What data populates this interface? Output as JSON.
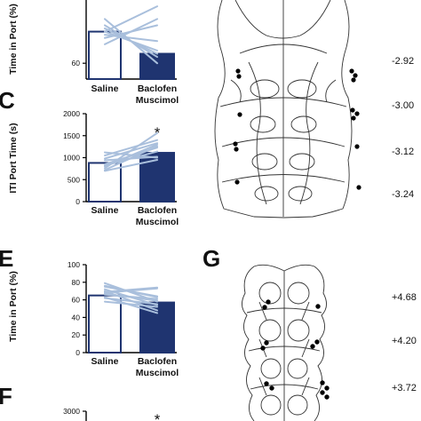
{
  "panels": {
    "top_partial": {
      "ylabel": "Time in Port (%)"
    },
    "C": {
      "letter": "C"
    },
    "E": {
      "letter": "E"
    },
    "F": {
      "letter": "F"
    },
    "G": {
      "letter": "G"
    }
  },
  "sections_top": [
    "-2.92",
    "-3.00",
    "-3.12",
    "-3.24"
  ],
  "sections_bottom": [
    "+4.68",
    "+4.20",
    "+3.72"
  ],
  "colors": {
    "saline": "#ffffff",
    "baclofen": "#1f3470",
    "outline": "#1f3470",
    "lines": "#a9bfdc"
  },
  "chart_data": [
    {
      "panel": "top",
      "type": "bar",
      "ylabel": "Time in Port (%)",
      "categories": [
        "Saline",
        "Baclofen\nMuscimol"
      ],
      "values": [
        70,
        63
      ],
      "yticks": [
        60
      ],
      "ylim": [
        55,
        80
      ],
      "individual": [
        [
          66,
          74
        ],
        [
          70,
          64
        ],
        [
          72,
          62
        ],
        [
          68,
          72
        ],
        [
          74,
          60
        ],
        [
          69,
          67
        ],
        [
          71,
          63
        ],
        [
          70,
          78
        ]
      ]
    },
    {
      "panel": "C",
      "type": "bar",
      "ylabel": "ITI Port Time (s)",
      "categories": [
        "Saline",
        "Baclofen\nMuscimol"
      ],
      "values": [
        880,
        1110
      ],
      "yticks": [
        0,
        500,
        1000,
        1500,
        2000
      ],
      "ylim": [
        0,
        2000
      ],
      "significance": "*",
      "individual": [
        [
          760,
          1560
        ],
        [
          1050,
          1400
        ],
        [
          720,
          1260
        ],
        [
          980,
          1330
        ],
        [
          820,
          1140
        ],
        [
          940,
          1020
        ],
        [
          850,
          1230
        ],
        [
          700,
          950
        ],
        [
          1120,
          1000
        ],
        [
          800,
          1300
        ]
      ]
    },
    {
      "panel": "E",
      "type": "bar",
      "ylabel": "Time in Port (%)",
      "categories": [
        "Saline",
        "Baclofen\nMuscimol"
      ],
      "values": [
        65,
        57
      ],
      "yticks": [
        0,
        20,
        40,
        60,
        80,
        100
      ],
      "ylim": [
        0,
        100
      ],
      "individual": [
        [
          72,
          54
        ],
        [
          79,
          58
        ],
        [
          68,
          73
        ],
        [
          75,
          64
        ],
        [
          62,
          55
        ],
        [
          70,
          48
        ],
        [
          66,
          61
        ],
        [
          58,
          52
        ],
        [
          76,
          63
        ],
        [
          63,
          45
        ],
        [
          69,
          74
        ],
        [
          67,
          59
        ]
      ]
    },
    {
      "panel": "F",
      "type": "bar",
      "yticks": [
        3000
      ],
      "significance": "*"
    }
  ],
  "x_labels": {
    "saline": "Saline",
    "baclofen_line1": "Baclofen",
    "baclofen_line2": "Muscimol"
  }
}
